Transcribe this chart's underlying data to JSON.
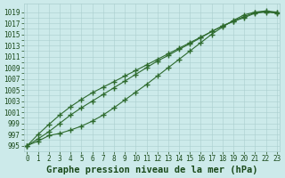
{
  "xlabel": "Graphe pression niveau de la mer (hPa)",
  "x": [
    0,
    1,
    2,
    3,
    4,
    5,
    6,
    7,
    8,
    9,
    10,
    11,
    12,
    13,
    14,
    15,
    16,
    17,
    18,
    19,
    20,
    21,
    22,
    23
  ],
  "line1": [
    995.0,
    995.8,
    996.8,
    997.2,
    997.8,
    998.5,
    999.4,
    1000.5,
    1001.8,
    1003.2,
    1004.6,
    1006.0,
    1007.5,
    1009.0,
    1010.5,
    1012.0,
    1013.5,
    1015.0,
    1016.3,
    1017.5,
    1018.5,
    1019.0,
    1019.2,
    1019.0
  ],
  "line2": [
    995.0,
    997.0,
    998.8,
    1000.5,
    1002.0,
    1003.3,
    1004.5,
    1005.5,
    1006.5,
    1007.5,
    1008.5,
    1009.5,
    1010.5,
    1011.5,
    1012.5,
    1013.5,
    1014.5,
    1015.5,
    1016.5,
    1017.3,
    1018.0,
    1018.8,
    1019.0,
    1018.8
  ],
  "line3": [
    995.0,
    996.2,
    997.5,
    999.0,
    1000.5,
    1001.8,
    1003.0,
    1004.2,
    1005.4,
    1006.6,
    1007.8,
    1009.0,
    1010.2,
    1011.2,
    1012.3,
    1013.3,
    1014.4,
    1015.5,
    1016.5,
    1017.4,
    1018.2,
    1018.9,
    1019.1,
    1018.9
  ],
  "line_color": "#2d6a2d",
  "bg_color": "#cceaea",
  "grid_color": "#aacece",
  "text_color": "#1a4a1a",
  "ylim_min": 994.0,
  "ylim_max": 1020.5,
  "ytick_min": 995,
  "ytick_max": 1019,
  "ytick_step": 2,
  "xlim_min": -0.3,
  "xlim_max": 23.3,
  "marker": "+",
  "marker_size": 4,
  "marker_edge_width": 1.0,
  "line_width": 0.8,
  "title_fontsize": 7.5,
  "tick_fontsize": 5.5
}
